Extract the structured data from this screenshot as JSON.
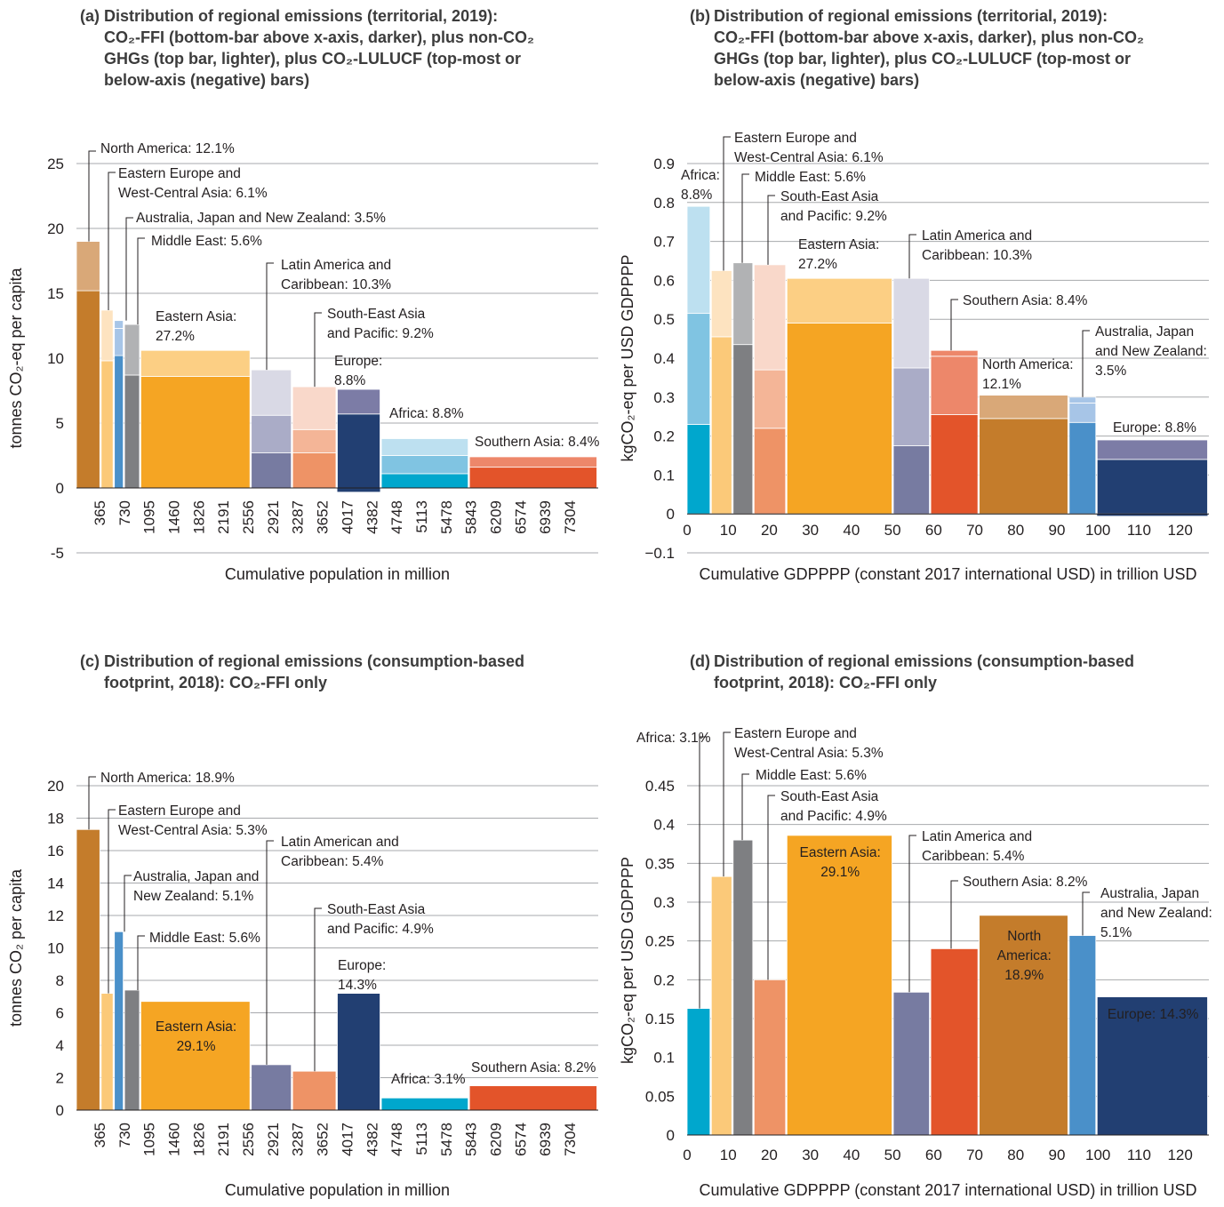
{
  "panels": {
    "a": {
      "title_label": "(a)",
      "title_l1": "Distribution of regional emissions (territorial, 2019):",
      "title_l2": "CO₂-FFI (bottom-bar above x-axis, darker), plus non-CO₂",
      "title_l3": "GHGs (top bar, lighter), plus CO₂-LULUCF (top-most or",
      "title_l4": "below-axis (negative) bars)"
    },
    "b": {
      "title_label": "(b)",
      "title_l1": "Distribution of regional emissions (territorial, 2019):",
      "title_l2": "CO₂-FFI (bottom-bar above x-axis, darker), plus non-CO₂",
      "title_l3": "GHGs (top bar, lighter), plus CO₂-LULUCF (top-most or",
      "title_l4": "below-axis (negative) bars)"
    },
    "c": {
      "title_label": "(c)",
      "title_l1": "Distribution of regional emissions (consumption-based",
      "title_l2": "footprint, 2018): CO₂-FFI only"
    },
    "d": {
      "title_label": "(d)",
      "title_l1": "Distribution of regional emissions (consumption-based",
      "title_l2": "footprint, 2018): CO₂-FFI only"
    }
  },
  "colors": {
    "north_america": [
      "#c47c2b",
      "#d9a878"
    ],
    "eastern_europe": [
      "#fbc979",
      "#fde3c0"
    ],
    "australia_japan_nz": [
      "#4a90c9",
      "#a7c5e7"
    ],
    "middle_east": [
      "#7e7f82",
      "#b1b2b4"
    ],
    "eastern_asia": [
      "#f5a523",
      "#fccf84"
    ],
    "latin_america": [
      "#777ba1",
      "#aaacc7",
      "#d9d9e5"
    ],
    "south_east_asia": [
      "#ee9366",
      "#f4b597",
      "#f9d8ca"
    ],
    "europe": [
      "#223f72",
      "#7c7ca6"
    ],
    "africa": [
      "#00a7cd",
      "#80c4e2",
      "#bde0f0"
    ],
    "southern_asia": [
      "#e3542a",
      "#ed876a"
    ]
  },
  "chart_data": [
    {
      "id": "a",
      "type": "bar",
      "ylabel": "tonnes CO₂-eq per capita",
      "xlabel": "Cumulative population in million",
      "ylim": [
        -5,
        25
      ],
      "yticks": [
        "-5",
        "0",
        "5",
        "10",
        "15",
        "20",
        "25"
      ],
      "xlim": [
        0,
        7700
      ],
      "xticks": [
        "365",
        "730",
        "1095",
        "1460",
        "1826",
        "2191",
        "2556",
        "2921",
        "3287",
        "3652",
        "4017",
        "4382",
        "4748",
        "5113",
        "5478",
        "5843",
        "6209",
        "6574",
        "6939",
        "7304"
      ],
      "grid": true,
      "bars": [
        {
          "region": "North America",
          "x0": 0,
          "x1": 365,
          "segments": [
            15.2,
            3.8
          ],
          "labels": [
            "North America: 12.1%"
          ]
        },
        {
          "region": "Eastern Europe and West-Central Asia",
          "x0": 365,
          "x1": 560,
          "segments": [
            9.8,
            3.9
          ],
          "labels": [
            "Eastern Europe and",
            "West-Central Asia: 6.1%"
          ]
        },
        {
          "region": "Australia, Japan and New Zealand",
          "x0": 560,
          "x1": 710,
          "segments": [
            10.2,
            2.1,
            0.6
          ],
          "labels": [
            "Australia, Japan and New Zealand: 3.5%"
          ]
        },
        {
          "region": "Middle East",
          "x0": 710,
          "x1": 950,
          "segments": [
            8.7,
            3.9
          ],
          "labels": [
            "Middle East: 5.6%"
          ]
        },
        {
          "region": "Eastern Asia",
          "x0": 950,
          "x1": 2580,
          "segments": [
            8.6,
            2.0
          ],
          "labels": [
            "Eastern Asia:",
            "27.2%"
          ]
        },
        {
          "region": "Latin America and Caribbean",
          "x0": 2580,
          "x1": 3190,
          "segments": [
            2.7,
            2.9,
            3.5
          ],
          "labels": [
            "Latin America and",
            "Caribbean: 10.3%"
          ]
        },
        {
          "region": "South-East Asia and Pacific",
          "x0": 3190,
          "x1": 3850,
          "segments": [
            2.7,
            1.8,
            3.3
          ],
          "labels": [
            "South-East Asia",
            "and Pacific: 9.2%"
          ]
        },
        {
          "region": "Europe",
          "x0": 3850,
          "x1": 4500,
          "segments": [
            5.7,
            1.9
          ],
          "negative": -0.3,
          "labels": [
            "Europe:",
            "8.8%"
          ]
        },
        {
          "region": "Africa",
          "x0": 4500,
          "x1": 5800,
          "segments": [
            1.1,
            1.4,
            1.3
          ],
          "labels": [
            "Africa: 8.8%"
          ]
        },
        {
          "region": "Southern Asia",
          "x0": 5800,
          "x1": 7700,
          "segments": [
            1.6,
            0.8
          ],
          "labels": [
            "Southern Asia: 8.4%"
          ]
        }
      ]
    },
    {
      "id": "b",
      "type": "bar",
      "ylabel": "kgCO₂-eq per USD GDPPPP",
      "xlabel": "Cumulative GDPPPP (constant 2017 international USD) in trillion USD",
      "ylim": [
        -0.1,
        0.9
      ],
      "yticks": [
        "−0.1",
        "0",
        "0.1",
        "0.2",
        "0.3",
        "0.4",
        "0.5",
        "0.6",
        "0.7",
        "0.8",
        "0.9"
      ],
      "xlim": [
        0,
        127
      ],
      "xticks": [
        "0",
        "10",
        "20",
        "30",
        "40",
        "50",
        "60",
        "70",
        "80",
        "90",
        "100",
        "110",
        "120"
      ],
      "grid": true,
      "bars": [
        {
          "region": "Africa",
          "x0": 0,
          "x1": 5.9,
          "segments": [
            0.23,
            0.285,
            0.275
          ],
          "labels": [
            "Africa:",
            "8.8%"
          ]
        },
        {
          "region": "Eastern Europe and West-Central Asia",
          "x0": 5.9,
          "x1": 11.2,
          "segments": [
            0.455,
            0.17
          ],
          "labels": [
            "Eastern Europe and",
            "West-Central Asia: 6.1%"
          ]
        },
        {
          "region": "Middle East",
          "x0": 11.2,
          "x1": 16.3,
          "segments": [
            0.435,
            0.21
          ],
          "labels": [
            "Middle East: 5.6%"
          ]
        },
        {
          "region": "South-East Asia and Pacific",
          "x0": 16.3,
          "x1": 24.3,
          "segments": [
            0.22,
            0.15,
            0.27
          ],
          "labels": [
            "South-East Asia",
            "and Pacific: 9.2%"
          ]
        },
        {
          "region": "Eastern Asia",
          "x0": 24.3,
          "x1": 50.2,
          "segments": [
            0.49,
            0.115
          ],
          "labels": [
            "Eastern Asia:",
            "27.2%"
          ]
        },
        {
          "region": "Latin America and Caribbean",
          "x0": 50.2,
          "x1": 59.3,
          "segments": [
            0.175,
            0.2,
            0.23
          ],
          "labels": [
            "Latin America and",
            "Caribbean: 10.3%"
          ]
        },
        {
          "region": "Southern Asia",
          "x0": 59.3,
          "x1": 71.1,
          "segments": [
            0.255,
            0.15,
            0.015
          ],
          "labels": [
            "Southern Asia: 8.4%"
          ]
        },
        {
          "region": "North America",
          "x0": 71.1,
          "x1": 93.0,
          "segments": [
            0.245,
            0.06
          ],
          "labels": [
            "North America:",
            "12.1%"
          ]
        },
        {
          "region": "Australia, Japan and New Zealand",
          "x0": 93.0,
          "x1": 99.8,
          "segments": [
            0.235,
            0.05,
            0.015
          ],
          "labels": [
            "Australia, Japan",
            "and New Zealand:",
            "3.5%"
          ]
        },
        {
          "region": "Europe",
          "x0": 99.8,
          "x1": 127,
          "segments": [
            0.14,
            0.05
          ],
          "negative": -0.005,
          "labels": [
            "Europe: 8.8%"
          ]
        }
      ]
    },
    {
      "id": "c",
      "type": "bar",
      "ylabel": "tonnes CO₂ per capita",
      "xlabel": "Cumulative population in million",
      "ylim": [
        0,
        20
      ],
      "yticks": [
        "0",
        "2",
        "4",
        "6",
        "8",
        "10",
        "12",
        "14",
        "16",
        "18",
        "20"
      ],
      "xlim": [
        0,
        7700
      ],
      "xticks": [
        "365",
        "730",
        "1095",
        "1460",
        "1826",
        "2191",
        "2556",
        "2921",
        "3287",
        "3652",
        "4017",
        "4382",
        "4748",
        "5113",
        "5478",
        "5843",
        "6209",
        "6574",
        "6939",
        "7304"
      ],
      "grid": true,
      "bars": [
        {
          "region": "North America",
          "x0": 0,
          "x1": 365,
          "segments": [
            17.3
          ],
          "labels": [
            "North America: 18.9%"
          ]
        },
        {
          "region": "Eastern Europe and West-Central Asia",
          "x0": 365,
          "x1": 560,
          "segments": [
            7.2
          ],
          "labels": [
            "Eastern Europe and",
            "West-Central Asia: 5.3%"
          ]
        },
        {
          "region": "Australia, Japan and New Zealand",
          "x0": 560,
          "x1": 710,
          "segments": [
            11.0
          ],
          "labels": [
            "Australia, Japan and",
            "New Zealand: 5.1%"
          ]
        },
        {
          "region": "Middle East",
          "x0": 710,
          "x1": 950,
          "segments": [
            7.4
          ],
          "labels": [
            "Middle East: 5.6%"
          ]
        },
        {
          "region": "Eastern Asia",
          "x0": 950,
          "x1": 2580,
          "segments": [
            6.7
          ],
          "labels": [
            "Eastern Asia:",
            "29.1%"
          ]
        },
        {
          "region": "Latin American and Caribbean",
          "x0": 2580,
          "x1": 3190,
          "segments": [
            2.8
          ],
          "labels": [
            "Latin American and",
            "Caribbean: 5.4%"
          ]
        },
        {
          "region": "South-East Asia and Pacific",
          "x0": 3190,
          "x1": 3850,
          "segments": [
            2.4
          ],
          "labels": [
            "South-East Asia",
            "and Pacific: 4.9%"
          ]
        },
        {
          "region": "Europe",
          "x0": 3850,
          "x1": 4500,
          "segments": [
            7.2
          ],
          "labels": [
            "Europe:",
            "14.3%"
          ]
        },
        {
          "region": "Africa",
          "x0": 4500,
          "x1": 5800,
          "segments": [
            0.75
          ],
          "labels": [
            "Africa: 3.1%"
          ]
        },
        {
          "region": "Southern Asia",
          "x0": 5800,
          "x1": 7700,
          "segments": [
            1.5
          ],
          "labels": [
            "Southern Asia: 8.2%"
          ]
        }
      ]
    },
    {
      "id": "d",
      "type": "bar",
      "ylabel": "kgCO₂-eq per USD GDPPPP",
      "xlabel": "Cumulative GDPPPP (constant 2017 international USD) in trillion USD",
      "ylim": [
        0,
        0.45
      ],
      "yticks": [
        "0",
        "0.05",
        "0.1",
        "0.15",
        "0.2",
        "0.25",
        "0.3",
        "0.35",
        "0.4",
        "0.45"
      ],
      "xlim": [
        0,
        127
      ],
      "xticks": [
        "0",
        "10",
        "20",
        "30",
        "40",
        "50",
        "60",
        "70",
        "80",
        "90",
        "100",
        "110",
        "120"
      ],
      "grid": true,
      "bars": [
        {
          "region": "Africa",
          "x0": 0,
          "x1": 5.9,
          "segments": [
            0.163
          ],
          "labels": [
            "Africa: 3.1%"
          ]
        },
        {
          "region": "Eastern Europe and West-Central Asia",
          "x0": 5.9,
          "x1": 11.2,
          "segments": [
            0.333
          ],
          "labels": [
            "Eastern Europe and",
            "West-Central Asia: 5.3%"
          ]
        },
        {
          "region": "Middle East",
          "x0": 11.2,
          "x1": 16.3,
          "segments": [
            0.38
          ],
          "labels": [
            "Middle East: 5.6%"
          ]
        },
        {
          "region": "South-East Asia and Pacific",
          "x0": 16.3,
          "x1": 24.3,
          "segments": [
            0.2
          ],
          "labels": [
            "South-East Asia",
            "and Pacific: 4.9%"
          ]
        },
        {
          "region": "Eastern Asia",
          "x0": 24.3,
          "x1": 50.2,
          "segments": [
            0.386
          ],
          "labels": [
            "Eastern Asia:",
            "29.1%"
          ]
        },
        {
          "region": "Latin America and Caribbean",
          "x0": 50.2,
          "x1": 59.3,
          "segments": [
            0.184
          ],
          "labels": [
            "Latin America and",
            "Caribbean: 5.4%"
          ]
        },
        {
          "region": "Southern Asia",
          "x0": 59.3,
          "x1": 71.1,
          "segments": [
            0.24
          ],
          "labels": [
            "Southern Asia: 8.2%"
          ]
        },
        {
          "region": "North America",
          "x0": 71.1,
          "x1": 93.0,
          "segments": [
            0.283
          ],
          "labels": [
            "North",
            "America:",
            "18.9%"
          ]
        },
        {
          "region": "Australia, Japan and New Zealand",
          "x0": 93.0,
          "x1": 99.8,
          "segments": [
            0.257
          ],
          "labels": [
            "Australia, Japan",
            "and New Zealand:",
            "5.1%"
          ]
        },
        {
          "region": "Europe",
          "x0": 99.8,
          "x1": 127,
          "segments": [
            0.178
          ],
          "labels": [
            "Europe: 14.3%"
          ]
        }
      ]
    }
  ]
}
